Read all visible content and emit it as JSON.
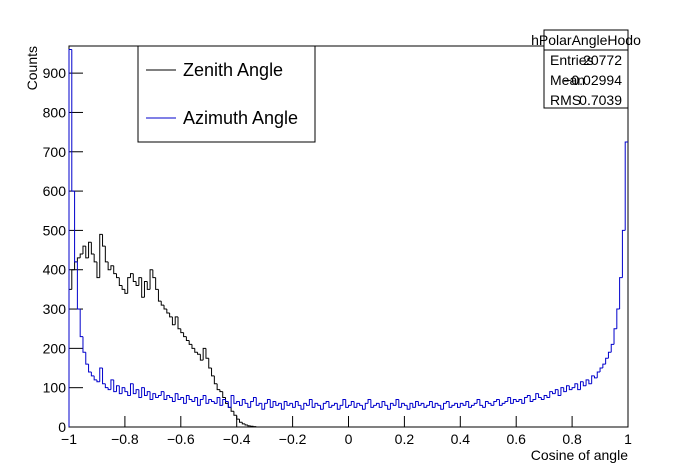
{
  "chart_data": {
    "type": "histogram",
    "xlabel": "Cosine of angle",
    "ylabel": "Counts",
    "xlim": [
      -1,
      1
    ],
    "ylim": [
      0,
      969
    ],
    "xticks": [
      {
        "value": -1,
        "label": "−1"
      },
      {
        "value": -0.8,
        "label": "−0.8"
      },
      {
        "value": -0.6,
        "label": "−0.6"
      },
      {
        "value": -0.4,
        "label": "−0.4"
      },
      {
        "value": -0.2,
        "label": "−0.2"
      },
      0,
      0.2,
      0.4,
      0.6,
      0.8,
      1
    ],
    "yticks": [
      0,
      100,
      200,
      300,
      400,
      500,
      600,
      700,
      800,
      900
    ],
    "grid": false,
    "legend": "top-left",
    "stats": {
      "title": "hPolarAngleHodo",
      "rows": [
        [
          "Entries",
          "20772"
        ],
        [
          "Mean",
          "−0.02994"
        ],
        [
          "RMS",
          "0.7039"
        ]
      ]
    },
    "bins": [
      -1,
      -0.99,
      -0.98,
      -0.97,
      -0.96,
      -0.95,
      -0.94,
      -0.93,
      -0.92,
      -0.91,
      -0.9,
      -0.89,
      -0.88,
      -0.87,
      -0.86,
      -0.85,
      -0.84,
      -0.83,
      -0.82,
      -0.81,
      -0.8,
      -0.79,
      -0.78,
      -0.77,
      -0.76,
      -0.75,
      -0.74,
      -0.73,
      -0.72,
      -0.71,
      -0.7,
      -0.69,
      -0.68,
      -0.67,
      -0.66,
      -0.65,
      -0.64,
      -0.63,
      -0.62,
      -0.61,
      -0.6,
      -0.59,
      -0.58,
      -0.57,
      -0.56,
      -0.55,
      -0.54,
      -0.53,
      -0.52,
      -0.51,
      -0.5,
      -0.49,
      -0.48,
      -0.47,
      -0.46,
      -0.45,
      -0.44,
      -0.43,
      -0.42,
      -0.41,
      -0.4,
      -0.39,
      -0.38,
      -0.37,
      -0.36,
      -0.35,
      -0.34,
      -0.33,
      -0.32,
      -0.31,
      -0.3,
      -0.29,
      -0.28,
      -0.27,
      -0.26,
      -0.25,
      -0.24,
      -0.23,
      -0.22,
      -0.21,
      -0.2,
      -0.19,
      -0.18,
      -0.17,
      -0.16,
      -0.15,
      -0.14,
      -0.13,
      -0.12,
      -0.11,
      -0.1,
      -0.09,
      -0.08,
      -0.07,
      -0.06,
      -0.05,
      -0.04,
      -0.03,
      -0.02,
      -0.01,
      0,
      0.01,
      0.02,
      0.03,
      0.04,
      0.05,
      0.06,
      0.07,
      0.08,
      0.09,
      0.1,
      0.11,
      0.12,
      0.13,
      0.14,
      0.15,
      0.16,
      0.17,
      0.18,
      0.19,
      0.2,
      0.21,
      0.22,
      0.23,
      0.24,
      0.25,
      0.26,
      0.27,
      0.28,
      0.29,
      0.3,
      0.31,
      0.32,
      0.33,
      0.34,
      0.35,
      0.36,
      0.37,
      0.38,
      0.39,
      0.4,
      0.41,
      0.42,
      0.43,
      0.44,
      0.45,
      0.46,
      0.47,
      0.48,
      0.49,
      0.5,
      0.51,
      0.52,
      0.53,
      0.54,
      0.55,
      0.56,
      0.57,
      0.58,
      0.59,
      0.6,
      0.61,
      0.62,
      0.63,
      0.64,
      0.65,
      0.66,
      0.67,
      0.68,
      0.69,
      0.7,
      0.71,
      0.72,
      0.73,
      0.74,
      0.75,
      0.76,
      0.77,
      0.78,
      0.79,
      0.8,
      0.81,
      0.82,
      0.83,
      0.84,
      0.85,
      0.86,
      0.87,
      0.88,
      0.89,
      0.9,
      0.91,
      0.92,
      0.93,
      0.94,
      0.95,
      0.96,
      0.97,
      0.98,
      0.99,
      1
    ],
    "series": [
      {
        "name": "Zenith Angle",
        "color": "#000000",
        "values": [
          350,
          400,
          420,
          430,
          440,
          460,
          430,
          470,
          440,
          420,
          380,
          490,
          460,
          420,
          400,
          410,
          390,
          380,
          360,
          350,
          340,
          380,
          390,
          370,
          360,
          380,
          330,
          370,
          350,
          400,
          380,
          350,
          320,
          310,
          300,
          290,
          280,
          260,
          280,
          250,
          240,
          230,
          220,
          210,
          200,
          190,
          185,
          170,
          200,
          175,
          150,
          130,
          110,
          95,
          90,
          75,
          60,
          50,
          40,
          30,
          20,
          12,
          8,
          5,
          3,
          2,
          1,
          0,
          0,
          0,
          0,
          0,
          0,
          0,
          0,
          0,
          0,
          0,
          0,
          0,
          0,
          0,
          0,
          0,
          0,
          0,
          0,
          0,
          0,
          0,
          0,
          0,
          0,
          0,
          0,
          0,
          0,
          0,
          0,
          0,
          0,
          0,
          0,
          0,
          0,
          0,
          0,
          0,
          0,
          0,
          0,
          0,
          0,
          0,
          0,
          0,
          0,
          0,
          0,
          0,
          0,
          0,
          0,
          0,
          0,
          0,
          0,
          0,
          0,
          0,
          0,
          0,
          0,
          0,
          0,
          0,
          0,
          0,
          0,
          0,
          0,
          0,
          0,
          0,
          0,
          0,
          0,
          0,
          0,
          0,
          0,
          0,
          0,
          0,
          0,
          0,
          0,
          0,
          0,
          0,
          0,
          0,
          0,
          0,
          0,
          0,
          0,
          0,
          0,
          0,
          0,
          0,
          0,
          0,
          0,
          0,
          0,
          0,
          0,
          0,
          0,
          0,
          0,
          0,
          0,
          0,
          0,
          0,
          0,
          0,
          0,
          0,
          0,
          0,
          0,
          0,
          0,
          0,
          0,
          0,
          0,
          0,
          0,
          0
        ]
      },
      {
        "name": "Azimuth Angle",
        "color": "#0000cc",
        "values": [
          960,
          600,
          420,
          300,
          230,
          190,
          160,
          140,
          130,
          120,
          115,
          150,
          110,
          100,
          95,
          120,
          90,
          105,
          85,
          100,
          90,
          80,
          110,
          85,
          95,
          75,
          100,
          80,
          90,
          70,
          85,
          75,
          80,
          90,
          70,
          80,
          75,
          65,
          85,
          70,
          75,
          60,
          80,
          70,
          65,
          75,
          55,
          70,
          80,
          60,
          70,
          65,
          60,
          75,
          55,
          70,
          65,
          50,
          80,
          60,
          65,
          55,
          70,
          60,
          50,
          65,
          75,
          55,
          60,
          45,
          60,
          70,
          50,
          65,
          55,
          60,
          45,
          65,
          55,
          60,
          50,
          65,
          55,
          45,
          60,
          55,
          70,
          50,
          60,
          55,
          45,
          60,
          65,
          50,
          55,
          60,
          45,
          55,
          70,
          50,
          55,
          65,
          50,
          60,
          55,
          45,
          60,
          70,
          50,
          55,
          60,
          50,
          65,
          55,
          45,
          60,
          55,
          70,
          50,
          60,
          55,
          45,
          60,
          50,
          65,
          55,
          60,
          50,
          55,
          65,
          50,
          60,
          55,
          45,
          60,
          65,
          50,
          55,
          60,
          50,
          60,
          55,
          65,
          50,
          55,
          60,
          70,
          55,
          50,
          65,
          60,
          55,
          65,
          70,
          55,
          60,
          65,
          75,
          60,
          70,
          65,
          70,
          60,
          75,
          80,
          65,
          70,
          85,
          75,
          70,
          80,
          75,
          90,
          85,
          95,
          80,
          100,
          90,
          105,
          95,
          100,
          110,
          95,
          115,
          105,
          120,
          110,
          130,
          125,
          140,
          150,
          160,
          175,
          190,
          210,
          250,
          300,
          380,
          500,
          725
        ]
      }
    ]
  }
}
